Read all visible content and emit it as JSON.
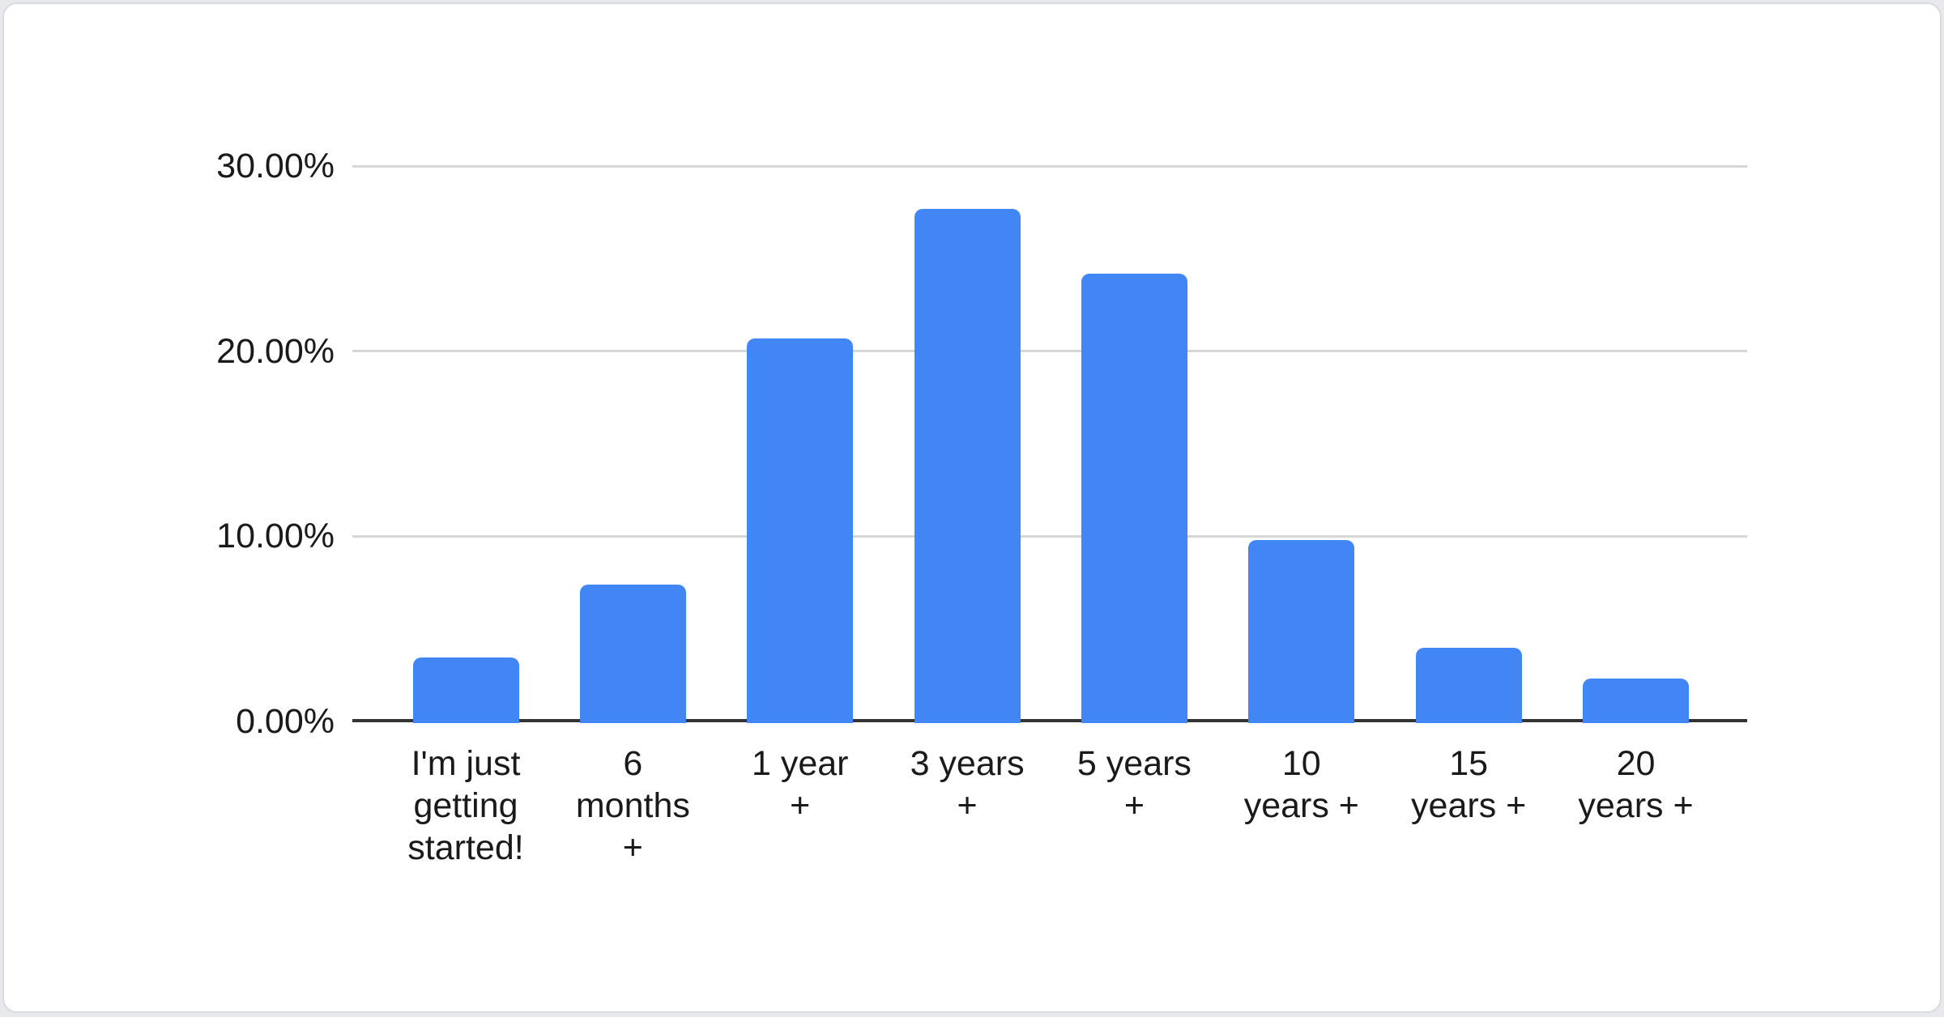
{
  "page": {
    "background_color": "#e7e9ec"
  },
  "card": {
    "background_color": "#ffffff",
    "border_color": "#d9dbde"
  },
  "chart_data": {
    "type": "bar",
    "title": "",
    "xlabel": "",
    "ylabel": "",
    "categories": [
      "I'm just\ngetting\nstarted!",
      "6\nmonths\n+",
      "1 year\n+",
      "3 years\n+",
      "5 years\n+",
      "10\nyears +",
      "15\nyears +",
      "20\nyears +"
    ],
    "values": [
      3.45,
      7.4,
      20.7,
      27.7,
      24.2,
      9.8,
      4.0,
      2.3
    ],
    "ylim": [
      0,
      30
    ],
    "ytick_values": [
      0,
      10,
      20,
      30
    ],
    "ytick_labels": [
      "0.00%",
      "10.00%",
      "20.00%",
      "30.00%"
    ],
    "grid": true,
    "legend": "none",
    "bar_color": "#4285f4",
    "gridline_color": "#d6d6d6",
    "axis_line_color": "#333333",
    "label_color": "#1a1a1a"
  }
}
